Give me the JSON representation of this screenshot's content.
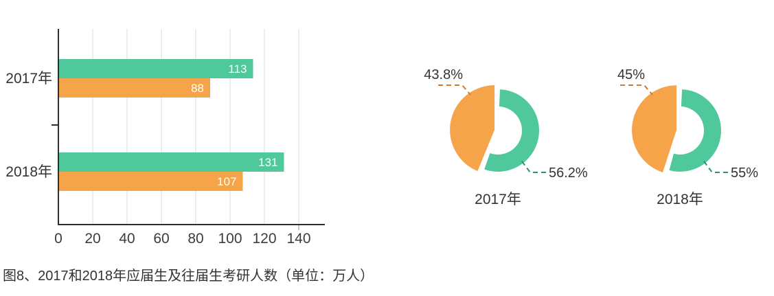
{
  "caption": "图8、2017和2018年应届生及往届生考研人数（单位：万人）",
  "colors": {
    "green": "#4FC89B",
    "orange": "#F6A449",
    "leader_orange": "#D2792E",
    "leader_teal": "#2E8F77",
    "axis": "#2E2E2E",
    "grid": "#DCDCDC",
    "axis_tick": "#8A8A8A",
    "text": "#333333",
    "tick_text": "#3C3C3C",
    "bar_value_text": "#FFFFFF"
  },
  "chart_data": [
    {
      "type": "bar",
      "orientation": "horizontal",
      "unit": "万人",
      "categories": [
        "2017年",
        "2018年"
      ],
      "series": [
        {
          "name": "series-green",
          "color": "#4FC89B",
          "values": [
            113,
            131
          ]
        },
        {
          "name": "series-orange",
          "color": "#F6A449",
          "values": [
            88,
            107
          ]
        }
      ],
      "x_ticks": [
        0,
        20,
        40,
        60,
        80,
        100,
        120,
        140
      ],
      "xlim": [
        0,
        155
      ],
      "grid": true,
      "legend": "none"
    },
    {
      "type": "pie",
      "title": "2017年",
      "slices": [
        {
          "label": "43.8%",
          "value": 43.8,
          "color": "#F6A449",
          "style": "exploded-solid-sector"
        },
        {
          "label": "56.2%",
          "value": 56.2,
          "color": "#4FC89B",
          "style": "donut-ring"
        }
      ],
      "legend": "none"
    },
    {
      "type": "pie",
      "title": "2018年",
      "slices": [
        {
          "label": "45%",
          "value": 45,
          "color": "#F6A449",
          "style": "exploded-solid-sector"
        },
        {
          "label": "55%",
          "value": 55,
          "color": "#4FC89B",
          "style": "donut-ring"
        }
      ],
      "legend": "none"
    }
  ]
}
